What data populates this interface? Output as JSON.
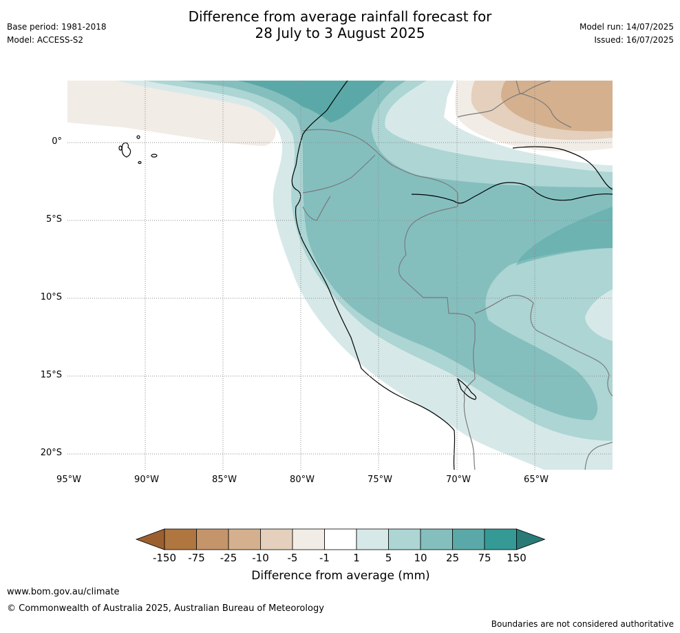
{
  "header": {
    "title_line1": "Difference from average rainfall forecast for",
    "title_line2": "28 July to 3 August 2025",
    "base_period": "Base period: 1981-2018",
    "model": "Model: ACCESS-S2",
    "model_run": "Model run: 14/07/2025",
    "issued": "Issued: 16/07/2025"
  },
  "map": {
    "lat_labels": [
      "0°",
      "5°S",
      "10°S",
      "15°S",
      "20°S"
    ],
    "lon_labels": [
      "95°W",
      "90°W",
      "85°W",
      "80°W",
      "75°W",
      "70°W",
      "65°W"
    ]
  },
  "colorbar": {
    "title": "Difference from average (mm)",
    "tick_labels": [
      "-150",
      "-75",
      "-25",
      "-10",
      "-5",
      "-1",
      "1",
      "5",
      "10",
      "25",
      "75",
      "150"
    ],
    "colors": [
      "#9c6030",
      "#b07640",
      "#c4946a",
      "#d4b08e",
      "#e4d0bc",
      "#f2ece6",
      "#ffffff",
      "#d6e9e8",
      "#acd5d4",
      "#84bfbe",
      "#5aa9a8",
      "#359a96",
      "#2a7a78"
    ]
  },
  "footer": {
    "website": "www.bom.gov.au/climate",
    "copyright": "© Commonwealth of Australia 2025, Australian Bureau of Meteorology",
    "disclaimer": "Boundaries are not considered authoritative"
  }
}
